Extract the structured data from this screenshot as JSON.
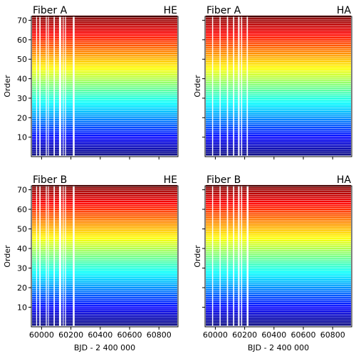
{
  "chart_data": [
    {
      "type": "heatmap",
      "title_left": "Fiber A",
      "title_right": "HE",
      "xlabel": "",
      "ylabel": "Order",
      "xlim": [
        59930,
        60930
      ],
      "ylim": [
        0,
        72
      ],
      "xticks": [
        60000,
        60200,
        60400,
        60600,
        60800
      ],
      "yticks": [
        10,
        20,
        30,
        40,
        50,
        60,
        70
      ],
      "show_xtick_labels": false,
      "show_ytick_labels": true,
      "gaps": [
        [
          59963,
          59969
        ],
        [
          59985,
          59993
        ],
        [
          60029,
          60035
        ],
        [
          60044,
          60049
        ],
        [
          60082,
          60090
        ],
        [
          60119,
          60133
        ],
        [
          60145,
          60150
        ],
        [
          60160,
          60166
        ],
        [
          60213,
          60225
        ]
      ],
      "colormap": "jet"
    },
    {
      "type": "heatmap",
      "title_left": "Fiber A",
      "title_right": "HA",
      "xlabel": "",
      "ylabel": "Order",
      "xlim": [
        59930,
        60930
      ],
      "ylim": [
        0,
        72
      ],
      "xticks": [
        60000,
        60200,
        60400,
        60600,
        60800
      ],
      "yticks": [
        10,
        20,
        30,
        40,
        50,
        60,
        70
      ],
      "show_xtick_labels": false,
      "show_ytick_labels": false,
      "gaps": [
        [
          59978,
          59985
        ],
        [
          60029,
          60036
        ],
        [
          60079,
          60087
        ],
        [
          60121,
          60129
        ],
        [
          60155,
          60165
        ],
        [
          60176,
          60183
        ],
        [
          60214,
          60222
        ]
      ],
      "colormap": "jet"
    },
    {
      "type": "heatmap",
      "title_left": "Fiber B",
      "title_right": "HE",
      "xlabel": "BJD - 2 400 000",
      "ylabel": "Order",
      "xlim": [
        59930,
        60930
      ],
      "ylim": [
        0,
        72
      ],
      "xticks": [
        60000,
        60200,
        60400,
        60600,
        60800
      ],
      "yticks": [
        10,
        20,
        30,
        40,
        50,
        60,
        70
      ],
      "show_xtick_labels": true,
      "show_ytick_labels": true,
      "gaps": [
        [
          59963,
          59969
        ],
        [
          59985,
          59993
        ],
        [
          60029,
          60035
        ],
        [
          60044,
          60049
        ],
        [
          60082,
          60090
        ],
        [
          60119,
          60133
        ],
        [
          60145,
          60150
        ],
        [
          60160,
          60166
        ],
        [
          60213,
          60225
        ]
      ],
      "colormap": "jet"
    },
    {
      "type": "heatmap",
      "title_left": "Fiber B",
      "title_right": "HA",
      "xlabel": "BJD - 2 400 000",
      "ylabel": "Order",
      "xlim": [
        59930,
        60930
      ],
      "ylim": [
        0,
        72
      ],
      "xticks": [
        60000,
        60200,
        60400,
        60600,
        60800
      ],
      "yticks": [
        10,
        20,
        30,
        40,
        50,
        60,
        70
      ],
      "show_xtick_labels": true,
      "show_ytick_labels": false,
      "gaps": [
        [
          59978,
          59985
        ],
        [
          60029,
          60036
        ],
        [
          60079,
          60087
        ],
        [
          60121,
          60129
        ],
        [
          60155,
          60165
        ],
        [
          60176,
          60183
        ],
        [
          60214,
          60226
        ]
      ],
      "colormap": "jet"
    }
  ]
}
